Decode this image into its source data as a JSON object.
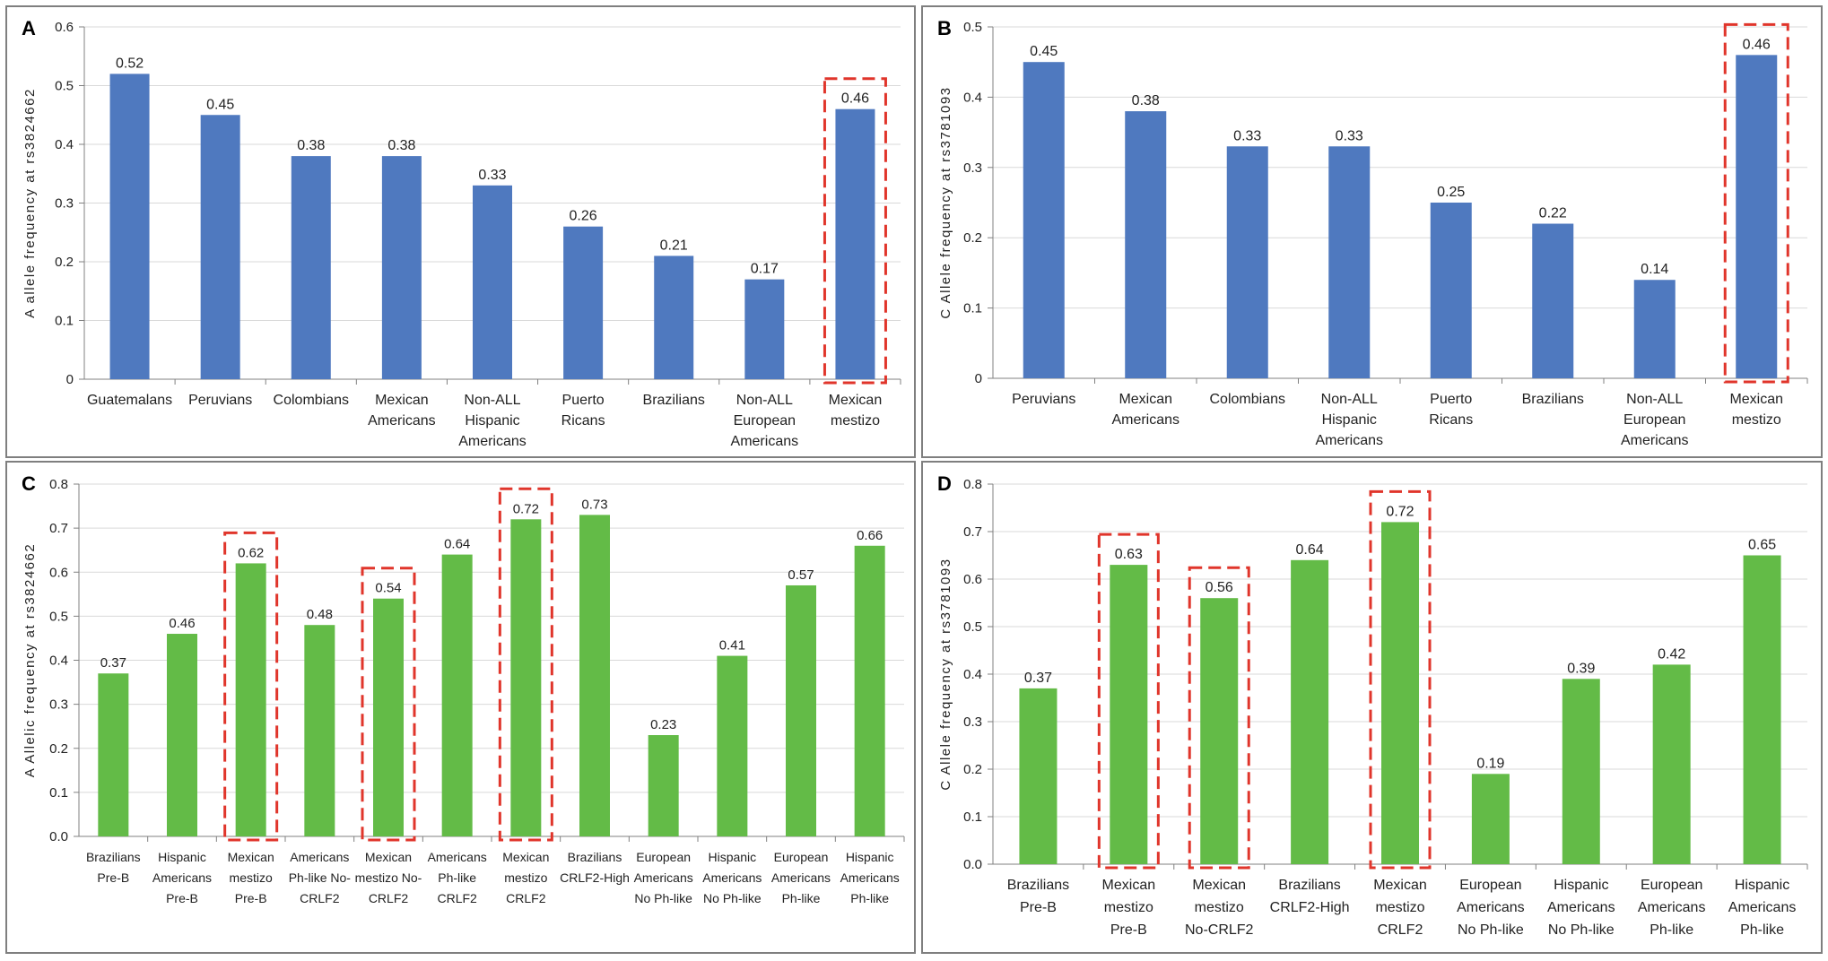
{
  "colors": {
    "blue": "#4f79bf",
    "green": "#63bb47",
    "highlight": "#e0352b",
    "grid": "#d9d9d9",
    "axis": "#808080"
  },
  "chart_data": [
    {
      "panel": "A",
      "type": "bar",
      "ylabel": "A  allele  frequency  at  rs3824662",
      "ylim": [
        0,
        0.6
      ],
      "yticks": [
        "0",
        "0.1",
        "0.2",
        "0.3",
        "0.4",
        "0.5",
        "0.6"
      ],
      "color": "blue",
      "categories": [
        [
          "Guatemalans"
        ],
        [
          "Peruvians"
        ],
        [
          "Colombians"
        ],
        [
          "Mexican",
          "Americans"
        ],
        [
          "Non-ALL",
          "Hispanic",
          "Americans"
        ],
        [
          "Puerto",
          "Ricans"
        ],
        [
          "Brazilians"
        ],
        [
          "Non-ALL",
          "European",
          "Americans"
        ],
        [
          "Mexican",
          "mestizo"
        ]
      ],
      "values": [
        0.52,
        0.45,
        0.38,
        0.38,
        0.33,
        0.26,
        0.21,
        0.17,
        0.46
      ],
      "labels": [
        "0.52",
        "0.45",
        "0.38",
        "0.38",
        "0.33",
        "0.26",
        "0.21",
        "0.17",
        "0.46"
      ],
      "highlighted": [
        8
      ]
    },
    {
      "panel": "B",
      "type": "bar",
      "ylabel": "C  Allele  frequency  at  rs3781093",
      "ylim": [
        0,
        0.5
      ],
      "yticks": [
        "0",
        "0.1",
        "0.2",
        "0.3",
        "0.4",
        "0.5"
      ],
      "color": "blue",
      "categories": [
        [
          "Peruvians"
        ],
        [
          "Mexican",
          "Americans"
        ],
        [
          "Colombians"
        ],
        [
          "Non-ALL",
          "Hispanic",
          "Americans"
        ],
        [
          "Puerto",
          "Ricans"
        ],
        [
          "Brazilians"
        ],
        [
          "Non-ALL",
          "European",
          "Americans"
        ],
        [
          "Mexican",
          "mestizo"
        ]
      ],
      "values": [
        0.45,
        0.38,
        0.33,
        0.33,
        0.25,
        0.22,
        0.14,
        0.46
      ],
      "labels": [
        "0.45",
        "0.38",
        "0.33",
        "0.33",
        "0.25",
        "0.22",
        "0.14",
        "0.46"
      ],
      "highlighted": [
        7
      ]
    },
    {
      "panel": "C",
      "type": "bar",
      "ylabel": "A  Allelic  frequency  at  rs3824662",
      "ylim": [
        0,
        0.8
      ],
      "yticks": [
        "0.0",
        "0.1",
        "0.2",
        "0.3",
        "0.4",
        "0.5",
        "0.6",
        "0.7",
        "0.8"
      ],
      "color": "green",
      "categories": [
        [
          "Brazilians",
          "Pre-B"
        ],
        [
          "Hispanic",
          "Americans",
          "Pre-B"
        ],
        [
          "Mexican",
          "mestizo",
          "Pre-B"
        ],
        [
          "Americans",
          "Ph-like No-",
          "CRLF2"
        ],
        [
          "Mexican",
          "mestizo No-",
          "CRLF2"
        ],
        [
          "Americans",
          "Ph-like",
          "CRLF2"
        ],
        [
          "Mexican",
          "mestizo",
          "CRLF2"
        ],
        [
          "Brazilians",
          "CRLF2-High"
        ],
        [
          "European",
          "Americans",
          "No Ph-like"
        ],
        [
          "Hispanic",
          "Americans",
          "No Ph-like"
        ],
        [
          "European",
          "Americans",
          "Ph-like"
        ],
        [
          "Hispanic",
          "Americans",
          "Ph-like"
        ]
      ],
      "values": [
        0.37,
        0.46,
        0.62,
        0.48,
        0.54,
        0.64,
        0.72,
        0.73,
        0.23,
        0.41,
        0.57,
        0.66
      ],
      "labels": [
        "0.37",
        "0.46",
        "0.62",
        "0.48",
        "0.54",
        "0.64",
        "0.72",
        "0.73",
        "0.23",
        "0.41",
        "0.57",
        "0.66"
      ],
      "highlighted": [
        2,
        4,
        6
      ]
    },
    {
      "panel": "D",
      "type": "bar",
      "ylabel": "C  Allele  frequency  at  rs3781093",
      "ylim": [
        0,
        0.8
      ],
      "yticks": [
        "0.0",
        "0.1",
        "0.2",
        "0.3",
        "0.4",
        "0.5",
        "0.6",
        "0.7",
        "0.8"
      ],
      "color": "green",
      "categories": [
        [
          "Brazilians",
          "Pre-B"
        ],
        [
          "Mexican",
          "mestizo",
          "Pre-B"
        ],
        [
          "Mexican",
          "mestizo",
          "No-CRLF2"
        ],
        [
          "Brazilians",
          "CRLF2-High"
        ],
        [
          "Mexican",
          "mestizo",
          "CRLF2"
        ],
        [
          "European",
          "Americans",
          "No Ph-like"
        ],
        [
          "Hispanic",
          "Americans",
          "No Ph-like"
        ],
        [
          "European",
          "Americans",
          "Ph-like"
        ],
        [
          "Hispanic",
          "Americans",
          "Ph-like"
        ]
      ],
      "values": [
        0.37,
        0.63,
        0.56,
        0.64,
        0.72,
        0.19,
        0.39,
        0.42,
        0.65
      ],
      "labels": [
        "0.37",
        "0.63",
        "0.56",
        "0.64",
        "0.72",
        "0.19",
        "0.39",
        "0.42",
        "0.65"
      ],
      "highlighted": [
        1,
        2,
        4
      ]
    }
  ]
}
